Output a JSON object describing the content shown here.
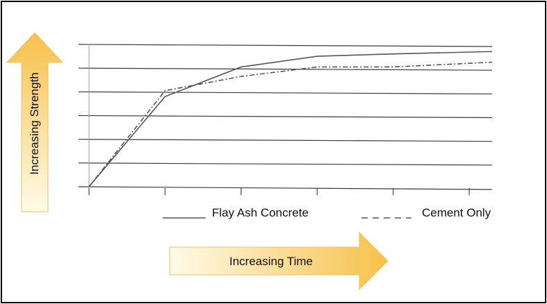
{
  "chart_data": {
    "type": "line",
    "title": "",
    "xlabel": "Increasing Time",
    "ylabel": "Increasing Strength",
    "x": [
      0,
      1,
      2,
      3,
      4,
      5
    ],
    "xlim": [
      0,
      5.3
    ],
    "ylim": [
      0,
      6
    ],
    "grid": true,
    "legend_position": "bottom",
    "series": [
      {
        "name": "Flay Ash Concrete",
        "style": "solid",
        "x": [
          0,
          1,
          2,
          3,
          4,
          5.3
        ],
        "values": [
          0,
          3.8,
          5.05,
          5.5,
          5.6,
          5.7
        ]
      },
      {
        "name": "Cement Only",
        "style": "dashed",
        "x": [
          0,
          1,
          2,
          3,
          4,
          5.3
        ],
        "values": [
          0,
          4.05,
          4.65,
          5.05,
          5.05,
          5.25
        ]
      }
    ]
  },
  "colors": {
    "arrow_light": "#fffbe9",
    "arrow_dark": "#f7c04a",
    "arrow_edge": "#f0c35a",
    "grid": "#3a3a3a",
    "series": "#555555"
  }
}
